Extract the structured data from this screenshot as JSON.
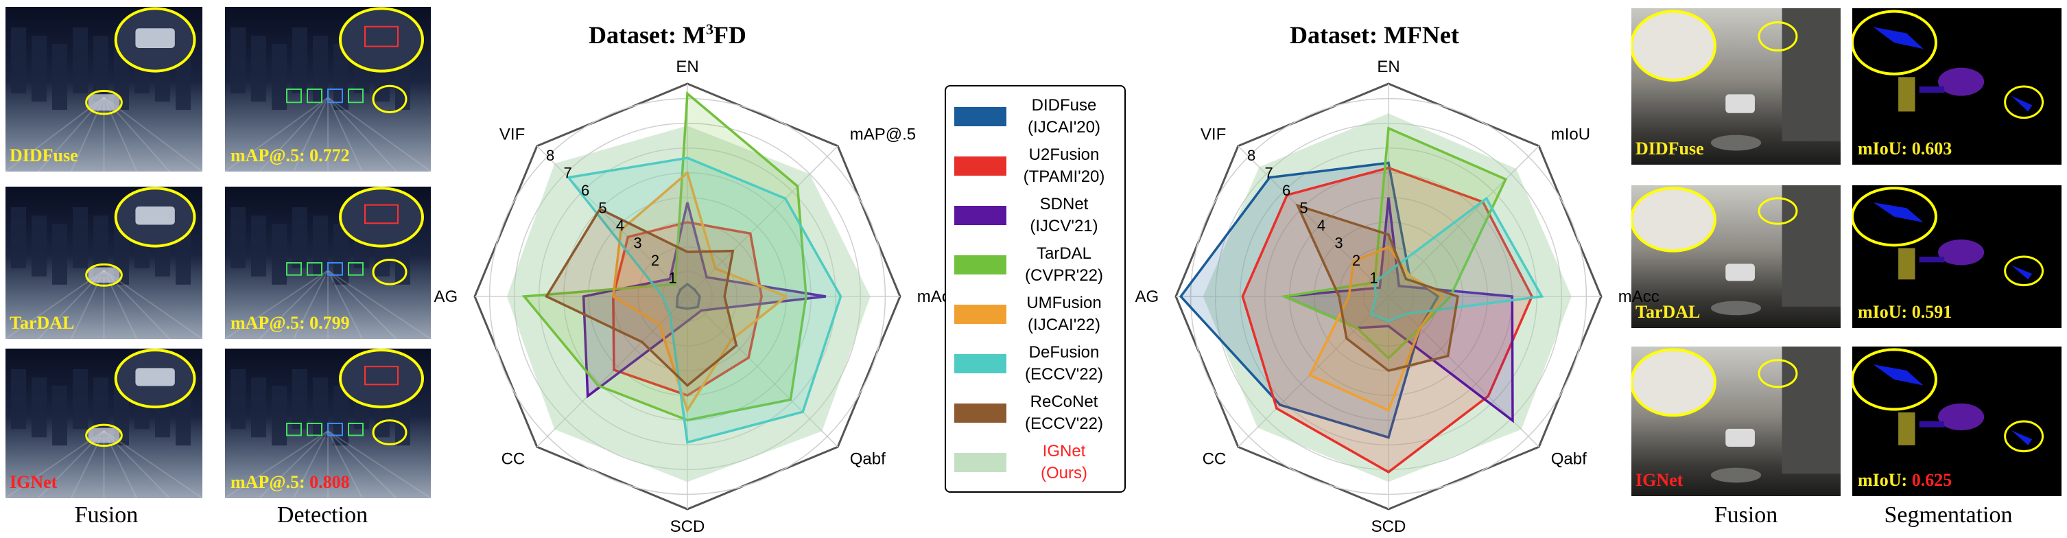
{
  "colors": {
    "highlight": "#ffff00",
    "ours_label": "#ff2020",
    "method_label": "#ffee22"
  },
  "fusion_panels": [
    {
      "method": "DIDFuse",
      "score": "mAP@.5: 0.772"
    },
    {
      "method": "TarDAL",
      "score": "mAP@.5: 0.799"
    },
    {
      "method": "IGNet",
      "score": "mAP@.5: 0.808"
    }
  ],
  "seg_panels": [
    {
      "method": "DIDFuse",
      "score": "mIoU: 0.603"
    },
    {
      "method": "TarDAL",
      "score": "mIoU: 0.591"
    },
    {
      "method": "IGNet",
      "score": "mIoU: 0.625"
    }
  ],
  "captions": {
    "left_fusion": "Fusion",
    "detection": "Detection",
    "right_fusion": "Fusion",
    "segmentation": "Segmentation"
  },
  "chart_data": [
    {
      "type": "radar",
      "title_prefix": "Dataset: M",
      "title_sup": "3",
      "title_suffix": "FD",
      "axes": [
        "EN",
        "mAP@.5",
        "mAcc",
        "Qabf",
        "SCD",
        "CC",
        "AG",
        "VIF"
      ],
      "rings": [
        1,
        2,
        3,
        4,
        5,
        6,
        7,
        8
      ],
      "range": [
        0,
        8.6
      ],
      "series": [
        {
          "name": "DIDFuse",
          "tag": "(IJCAI'20)",
          "color": "#1a5c99",
          "values": [
            0.5,
            0.4,
            0.5,
            0.6,
            0.5,
            0.6,
            0.4,
            0.4
          ]
        },
        {
          "name": "U2Fusion",
          "tag": "(TPAMI'20)",
          "color": "#e8302a",
          "values": [
            3.0,
            3.6,
            3.0,
            3.5,
            4.0,
            4.2,
            3.0,
            3.4
          ]
        },
        {
          "name": "SDNet",
          "tag": "(IJCV'21)",
          "color": "#5b16a0",
          "values": [
            3.8,
            1.1,
            5.6,
            0.8,
            1.0,
            5.7,
            4.2,
            1.0
          ]
        },
        {
          "name": "TarDAL",
          "tag": "(CVPR'22)",
          "color": "#72c13c",
          "values": [
            8.2,
            6.3,
            4.8,
            5.9,
            5.0,
            5.1,
            6.6,
            0.7
          ]
        },
        {
          "name": "UMFusion",
          "tag": "(IJCAI'22)",
          "color": "#f0a030",
          "values": [
            5.0,
            1.6,
            4.0,
            2.5,
            4.6,
            1.6,
            3.0,
            3.8
          ]
        },
        {
          "name": "DeFusion",
          "tag": "(ECCV'22)",
          "color": "#4ecbc3",
          "values": [
            5.6,
            5.6,
            6.2,
            6.6,
            5.9,
            1.0,
            1.0,
            6.8
          ]
        },
        {
          "name": "ReCoNet",
          "tag": "(ECCV'22)",
          "color": "#8c5a2e",
          "values": [
            1.8,
            2.6,
            1.5,
            2.8,
            3.6,
            2.6,
            5.7,
            5.0
          ]
        },
        {
          "name": "IGNet",
          "tag": "(Ours)",
          "color": "#a9d3a9",
          "values": [
            6.9,
            7.0,
            7.4,
            7.7,
            7.5,
            7.6,
            7.3,
            7.6
          ]
        }
      ]
    },
    {
      "type": "radar",
      "title_prefix": "Dataset: MFNet",
      "title_sup": "",
      "title_suffix": "",
      "axes": [
        "EN",
        "mIoU",
        "mAcc",
        "Qabf",
        "SCD",
        "CC",
        "AG",
        "VIF"
      ],
      "rings": [
        1,
        2,
        3,
        4,
        5,
        6,
        7,
        8
      ],
      "range": [
        0,
        8.6
      ],
      "series": [
        {
          "name": "DIDFuse",
          "tag": "(IJCAI'20)",
          "color": "#1a5c99",
          "values": [
            5.4,
            1.2,
            2.0,
            1.8,
            5.7,
            6.2,
            8.4,
            6.8
          ]
        },
        {
          "name": "U2Fusion",
          "tag": "(TPAMI'20)",
          "color": "#e8302a",
          "values": [
            5.2,
            5.4,
            5.8,
            5.7,
            7.1,
            6.4,
            5.9,
            5.8
          ]
        },
        {
          "name": "SDNet",
          "tag": "(IJCV'21)",
          "color": "#5b16a0",
          "values": [
            4.0,
            0.6,
            5.0,
            7.1,
            1.2,
            1.8,
            4.2,
            0.5
          ]
        },
        {
          "name": "TarDAL",
          "tag": "(CVPR'22)",
          "color": "#72c13c",
          "values": [
            6.8,
            6.7,
            2.5,
            1.8,
            2.5,
            1.8,
            4.2,
            0.8
          ]
        },
        {
          "name": "UMFusion",
          "tag": "(IJCAI'22)",
          "color": "#f0a030",
          "values": [
            2.0,
            1.2,
            2.2,
            1.8,
            4.6,
            4.5,
            1.6,
            2.0
          ]
        },
        {
          "name": "DeFusion",
          "tag": "(ECCV'22)",
          "color": "#4ecbc3",
          "values": [
            1.0,
            5.6,
            6.2,
            1.0,
            1.0,
            1.0,
            0.5,
            0.8
          ]
        },
        {
          "name": "ReCoNet",
          "tag": "(ECCV'22)",
          "color": "#8c5a2e",
          "values": [
            2.5,
            1.0,
            2.8,
            3.4,
            3.0,
            2.4,
            2.0,
            5.2
          ]
        },
        {
          "name": "IGNet",
          "tag": "(Ours)",
          "color": "#a9d3a9",
          "values": [
            7.4,
            7.3,
            7.4,
            7.6,
            7.5,
            7.5,
            7.5,
            7.4
          ]
        }
      ]
    }
  ]
}
